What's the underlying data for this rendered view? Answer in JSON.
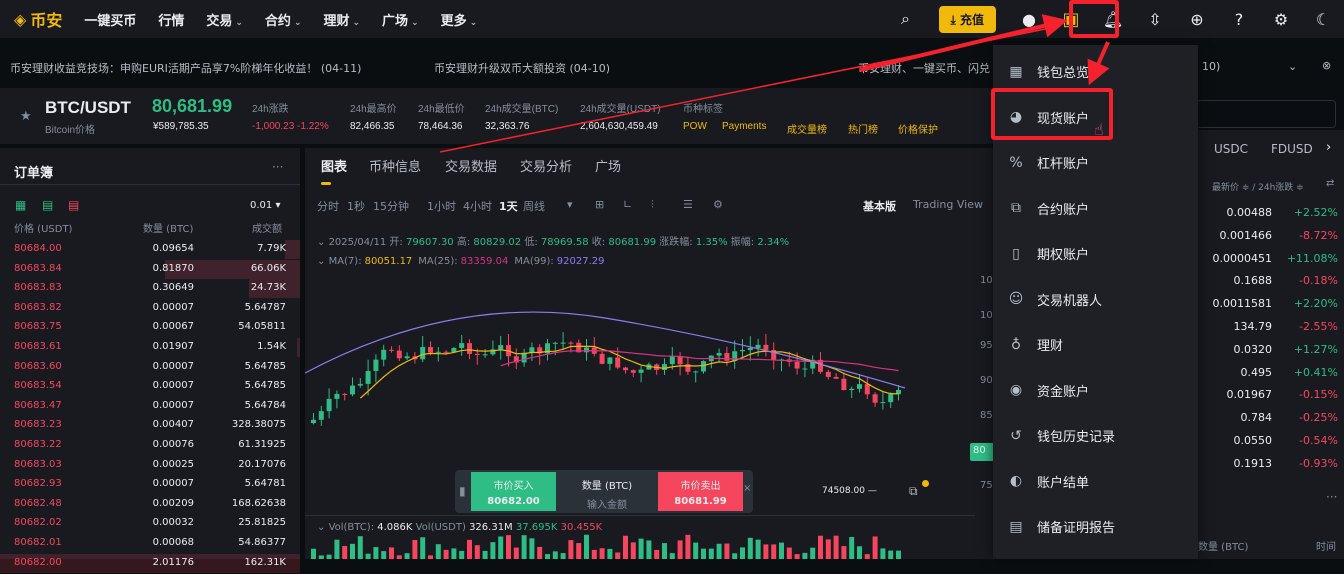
{
  "nav": {
    "brand": "币安",
    "items": [
      "一键买币",
      "行情",
      "交易",
      "合约",
      "理财",
      "广场",
      "更多"
    ],
    "has_caret": [
      false,
      false,
      true,
      true,
      true,
      true,
      true
    ],
    "deposit": "充值"
  },
  "announce": [
    "币安理财收益竞技场：申购EURI活期产品享7%阶梯年化收益！ (04-11)",
    "币安理财升级双币大额投资 (04-10)",
    "币安理财、一键买币、闪兑",
    "10)"
  ],
  "ticker": {
    "pair": "BTC/USDT",
    "subtitle": "Bitcoin价格",
    "price": "80,681.99",
    "cny": "¥589,785.35",
    "stats": [
      {
        "label": "24h涨跌",
        "value": "-1,000.23 -1.22%",
        "color": "red"
      },
      {
        "label": "24h最高价",
        "value": "82,466.35"
      },
      {
        "label": "24h最低价",
        "value": "78,464.36"
      },
      {
        "label": "24h成交量(BTC)",
        "value": "32,363.76"
      },
      {
        "label": "24h成交量(USDT)",
        "value": "2,604,630,459.49"
      }
    ],
    "tags_label": "币种标签",
    "tags": [
      "POW",
      "Payments",
      "成交量榜",
      "热门榜",
      "价格保护"
    ]
  },
  "orderbook": {
    "title": "订单簿",
    "more": "···",
    "precision": "0.01",
    "headers": [
      "价格 (USDT)",
      "数量 (BTC)",
      "成交额"
    ],
    "asks": [
      [
        "80684.00",
        "0.09654",
        "7.79K"
      ],
      [
        "80683.84",
        "0.81870",
        "66.06K"
      ],
      [
        "80683.83",
        "0.30649",
        "24.73K"
      ],
      [
        "80683.82",
        "0.00007",
        "5.64787"
      ],
      [
        "80683.75",
        "0.00067",
        "54.05811"
      ],
      [
        "80683.61",
        "0.01907",
        "1.54K"
      ],
      [
        "80683.60",
        "0.00007",
        "5.64785"
      ],
      [
        "80683.54",
        "0.00007",
        "5.64785"
      ],
      [
        "80683.47",
        "0.00007",
        "5.64784"
      ],
      [
        "80683.23",
        "0.00407",
        "328.38075"
      ],
      [
        "80683.22",
        "0.00076",
        "61.31925"
      ],
      [
        "80683.03",
        "0.00025",
        "20.17076"
      ],
      [
        "80682.93",
        "0.00007",
        "5.64781"
      ],
      [
        "80682.48",
        "0.00209",
        "168.62638"
      ],
      [
        "80682.02",
        "0.00032",
        "25.81825"
      ],
      [
        "80682.01",
        "0.00068",
        "54.86377"
      ],
      [
        "80682.00",
        "2.01176",
        "162.31K"
      ]
    ],
    "depth": [
      0.05,
      0.45,
      0.17,
      0,
      0,
      0.01,
      0,
      0,
      0,
      0,
      0,
      0,
      0,
      0,
      0,
      0,
      1
    ]
  },
  "chart": {
    "tabs": [
      "图表",
      "币种信息",
      "交易数据",
      "交易分析",
      "广场"
    ],
    "active_tab": 0,
    "timeframes": [
      "分时",
      "1秒",
      "15分钟",
      "1小时",
      "4小时",
      "1天",
      "周线"
    ],
    "active_tf": 5,
    "modes": [
      "基本版",
      "Trading View"
    ],
    "ohlc": {
      "date": "2025/04/11",
      "open_l": "开:",
      "open": "79607.30",
      "high_l": "高:",
      "high": "80829.02",
      "low_l": "低:",
      "low": "78969.58",
      "close_l": "收:",
      "close": "80681.99",
      "chg_l": "涨跌幅:",
      "chg": "1.35%",
      "amp_l": "振幅:",
      "amp": "2.34%"
    },
    "ma": [
      {
        "label": "MA(7):",
        "value": "80051.17",
        "color": "#f0b90b"
      },
      {
        "label": "MA(25):",
        "value": "83359.04",
        "color": "#d63384"
      },
      {
        "label": "MA(99):",
        "value": "92027.29",
        "color": "#8e7cf0"
      }
    ],
    "yaxis": [
      "10",
      "10",
      "95",
      "90",
      "85",
      "75"
    ],
    "last_label": "80",
    "low_marker": "74508.00",
    "vol": {
      "btc_l": "Vol(BTC):",
      "btc": "4.086K",
      "usdt_l": "Vol(USDT)",
      "usdt": "326.31M",
      "v1": "37.695K",
      "v2": "30.455K"
    },
    "quick": {
      "buy": "市价买入",
      "buy_price": "80682.00",
      "qty": "数量 (BTC)",
      "qty_ph": "输入金额",
      "sell": "市价卖出",
      "sell_price": "80681.99"
    }
  },
  "dropdown": [
    {
      "label": "钱包总览",
      "icon": "grid-icon"
    },
    {
      "label": "现货账户",
      "icon": "spot-icon"
    },
    {
      "label": "杠杆账户",
      "icon": "percent-icon"
    },
    {
      "label": "合约账户",
      "icon": "futures-icon"
    },
    {
      "label": "期权账户",
      "icon": "options-icon"
    },
    {
      "label": "交易机器人",
      "icon": "robot-icon"
    },
    {
      "label": "理财",
      "icon": "earn-icon"
    },
    {
      "label": "资金账户",
      "icon": "funding-icon"
    },
    {
      "label": "钱包历史记录",
      "icon": "history-icon"
    },
    {
      "label": "账户结单",
      "icon": "statement-icon"
    },
    {
      "label": "储备证明报告",
      "icon": "report-icon"
    }
  ],
  "market": {
    "tabs": [
      "USDC",
      "FDUSD"
    ],
    "header": "最新价 ≑ / 24h涨跌 ≑",
    "rows": [
      [
        "0.00488",
        "+2.52%"
      ],
      [
        "0.001466",
        "-8.72%"
      ],
      [
        "0.0000451",
        "+11.08%"
      ],
      [
        "0.1688",
        "-0.18%"
      ],
      [
        "0.0011581",
        "+2.20%"
      ],
      [
        "134.79",
        "-2.55%"
      ],
      [
        "0.0320",
        "+1.27%"
      ],
      [
        "0.495",
        "+0.41%"
      ],
      [
        "0.01967",
        "-0.15%"
      ],
      [
        "0.784",
        "-0.25%"
      ],
      [
        "0.0550",
        "-0.54%"
      ],
      [
        "0.1913",
        "-0.93%"
      ]
    ],
    "footer": [
      "数量 (BTC)",
      "时间"
    ],
    "more": "···"
  }
}
